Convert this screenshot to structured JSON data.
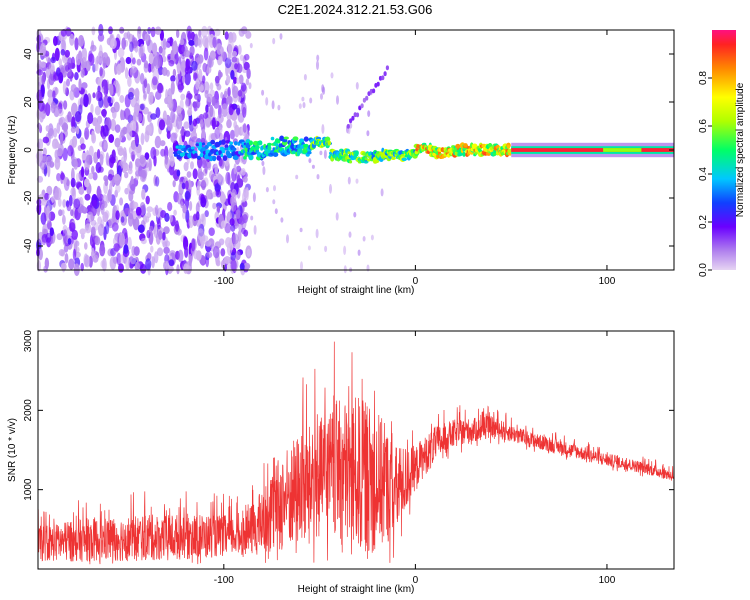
{
  "title": "C2E1.2024.312.21.53.G06",
  "chart_data": [
    {
      "type": "heatmap",
      "xlabel": "Height of straight line (km)",
      "ylabel": "Frequency (Hz)",
      "xlim": [
        -197,
        135
      ],
      "ylim": [
        -50,
        50
      ],
      "xticks": [
        -100,
        0,
        100
      ],
      "yticks": [
        -40,
        -20,
        0,
        20,
        40
      ],
      "colorbar": {
        "label": "Normalized spectral amplitude",
        "range": [
          0,
          1
        ],
        "ticks": [
          "0.0",
          "0.2",
          "0.4",
          "0.6",
          "0.8"
        ]
      },
      "features": {
        "noise_region_x": [
          -197,
          -87
        ],
        "signal_center_hz": 0,
        "strong_signal_start_x": 50
      }
    },
    {
      "type": "line",
      "xlabel": "Height of straight line (km)",
      "ylabel": "SNR (10 * v/v)",
      "xlim": [
        -197,
        135
      ],
      "ylim": [
        0,
        3000
      ],
      "xticks": [
        -100,
        0,
        100
      ],
      "yticks": [
        1000,
        2000,
        3000
      ],
      "color": "#ee3333",
      "envelope": {
        "x": [
          -197,
          -170,
          -150,
          -120,
          -90,
          -80,
          -70,
          -60,
          -50,
          -40,
          -30,
          -20,
          -10,
          0,
          10,
          20,
          30,
          40,
          50,
          60,
          80,
          100,
          120,
          135
        ],
        "base": [
          250,
          280,
          300,
          320,
          350,
          450,
          650,
          800,
          900,
          950,
          900,
          850,
          800,
          1200,
          1500,
          1650,
          1700,
          1750,
          1680,
          1600,
          1480,
          1350,
          1250,
          1150
        ],
        "amplitude": [
          500,
          600,
          650,
          650,
          550,
          900,
          1400,
          1600,
          1700,
          2000,
          2200,
          2000,
          1300,
          600,
          500,
          400,
          350,
          300,
          250,
          220,
          200,
          180,
          170,
          160
        ]
      }
    }
  ]
}
